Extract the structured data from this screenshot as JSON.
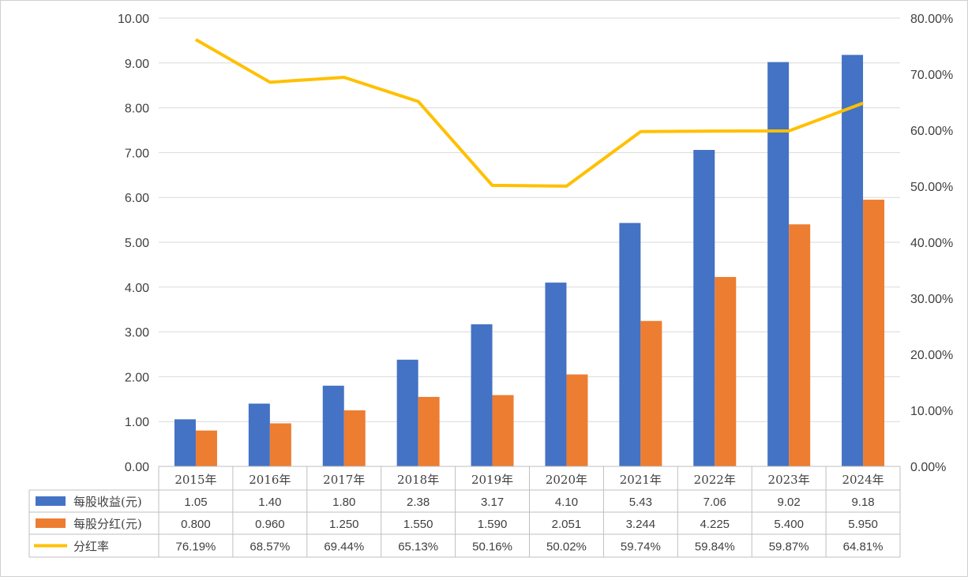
{
  "chart_data": {
    "type": "bar",
    "categories": [
      "2015年",
      "2016年",
      "2017年",
      "2018年",
      "2019年",
      "2020年",
      "2021年",
      "2022年",
      "2023年",
      "2024年"
    ],
    "series": [
      {
        "name": "每股收益(元)",
        "type": "bar",
        "axis": "left",
        "color": "#4472C4",
        "values": [
          1.05,
          1.4,
          1.8,
          2.38,
          3.17,
          4.1,
          5.43,
          7.06,
          9.02,
          9.18
        ],
        "labels": [
          "1.05",
          "1.40",
          "1.80",
          "2.38",
          "3.17",
          "4.10",
          "5.43",
          "7.06",
          "9.02",
          "9.18"
        ]
      },
      {
        "name": "每股分红(元)",
        "type": "bar",
        "axis": "left",
        "color": "#ED7D31",
        "values": [
          0.8,
          0.96,
          1.25,
          1.55,
          1.59,
          2.051,
          3.244,
          4.225,
          5.4,
          5.95
        ],
        "labels": [
          "0.800",
          "0.960",
          "1.250",
          "1.550",
          "1.590",
          "2.051",
          "3.244",
          "4.225",
          "5.400",
          "5.950"
        ]
      },
      {
        "name": "分红率",
        "type": "line",
        "axis": "right",
        "color": "#FFC000",
        "values": [
          76.19,
          68.57,
          69.44,
          65.13,
          50.16,
          50.02,
          59.74,
          59.84,
          59.87,
          64.81
        ],
        "labels": [
          "76.19%",
          "68.57%",
          "69.44%",
          "65.13%",
          "50.16%",
          "50.02%",
          "59.74%",
          "59.84%",
          "59.87%",
          "64.81%"
        ]
      }
    ],
    "left_axis": {
      "ylim": [
        0,
        10
      ],
      "ticks": [
        "0.00",
        "1.00",
        "2.00",
        "3.00",
        "4.00",
        "5.00",
        "6.00",
        "7.00",
        "8.00",
        "9.00",
        "10.00"
      ]
    },
    "right_axis": {
      "ylim": [
        0,
        80
      ],
      "ticks": [
        "0.00%",
        "10.00%",
        "20.00%",
        "30.00%",
        "40.00%",
        "50.00%",
        "60.00%",
        "70.00%",
        "80.00%"
      ]
    },
    "grid": true,
    "legend": "data-table-bottom"
  }
}
